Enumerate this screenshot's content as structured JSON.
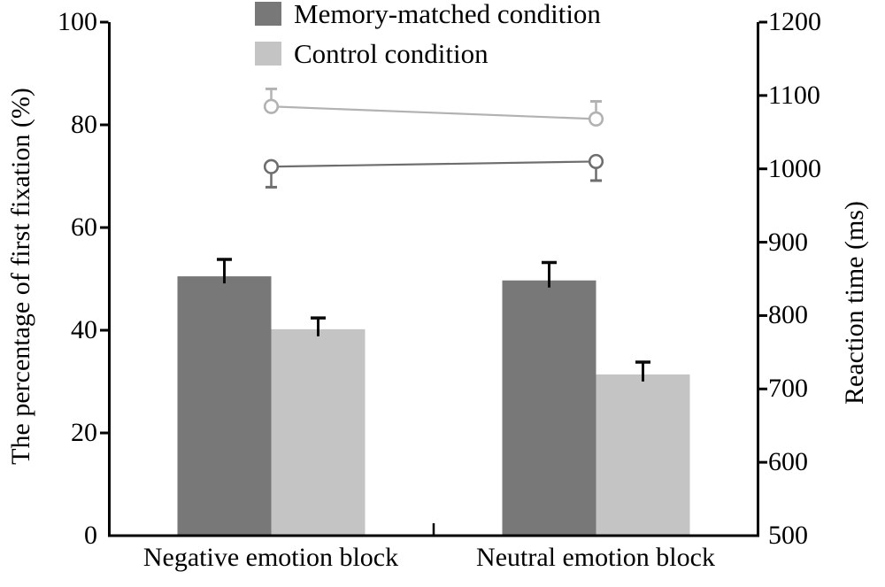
{
  "legend": {
    "items": [
      {
        "label": "Memory-matched condition",
        "color": "#787878"
      },
      {
        "label": "Control condition",
        "color": "#c4c4c4"
      }
    ]
  },
  "axes": {
    "left": {
      "title": "The percentage of first fixation (%)"
    },
    "right": {
      "title": "Reaction time (ms)"
    },
    "x": {
      "categories": [
        "Negative emotion block",
        "Neutral emotion block"
      ]
    }
  },
  "chart_data": [
    {
      "type": "bar",
      "axis": "left",
      "categories": [
        "Negative emotion block",
        "Neutral emotion block"
      ],
      "series": [
        {
          "name": "Memory-matched condition",
          "color": "#787878",
          "values": [
            50.5,
            49.7
          ],
          "errors": [
            3.3,
            3.5
          ]
        },
        {
          "name": "Control condition",
          "color": "#c4c4c4",
          "values": [
            40.2,
            31.4
          ],
          "errors": [
            2.2,
            2.4
          ]
        }
      ],
      "ylabel": "The percentage of first fixation (%)",
      "ylim": [
        0,
        100
      ],
      "yticks": [
        0,
        20,
        40,
        60,
        80,
        100
      ],
      "error_bar_color": "#0a0a0a",
      "grid": false,
      "legend_position": "top-center"
    },
    {
      "type": "line",
      "axis": "right",
      "categories": [
        "Negative emotion block",
        "Neutral emotion block"
      ],
      "series": [
        {
          "name": "Control condition",
          "color": "#b2b2b2",
          "marker": "open-circle",
          "values": [
            1085,
            1068
          ],
          "errors": [
            24,
            24
          ],
          "error_direction": "up"
        },
        {
          "name": "Memory-matched condition",
          "color": "#6e6e6e",
          "marker": "open-circle",
          "values": [
            1003,
            1010
          ],
          "errors": [
            28,
            26
          ],
          "error_direction": "down"
        }
      ],
      "ylabel": "Reaction time (ms)",
      "ylim": [
        500,
        1200
      ],
      "yticks": [
        500,
        600,
        700,
        800,
        900,
        1000,
        1100,
        1200
      ],
      "grid": false
    }
  ]
}
